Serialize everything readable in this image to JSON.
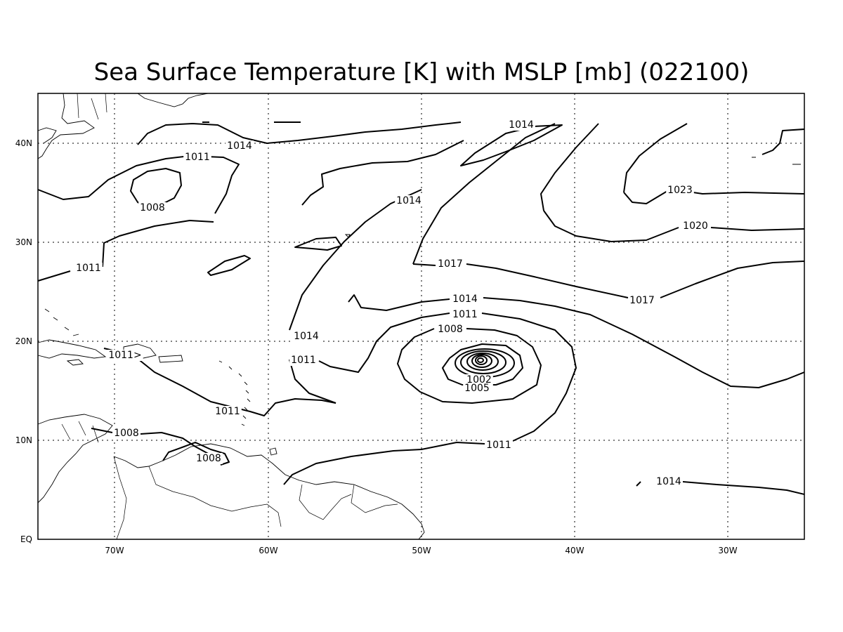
{
  "title": "Sea Surface Temperature [K] with MSLP [mb] (022100)",
  "longitude_ticks": [
    "70W",
    "60W",
    "50W",
    "40W",
    "30W"
  ],
  "latitude_ticks": [
    "EQ",
    "10N",
    "20N",
    "30N",
    "40N"
  ],
  "contour_labels": [
    "1014",
    "1014",
    "1011",
    "1008",
    "1014",
    "1023",
    "1020",
    "1011",
    "1017",
    "1017",
    "1014",
    "1011",
    "1008",
    "1014",
    "1011>",
    "1011",
    "1002",
    "1005",
    "1011",
    "1008",
    "1008",
    "1011",
    "1014"
  ],
  "colors": {
    "lines": "#000000",
    "background": "#ffffff"
  }
}
